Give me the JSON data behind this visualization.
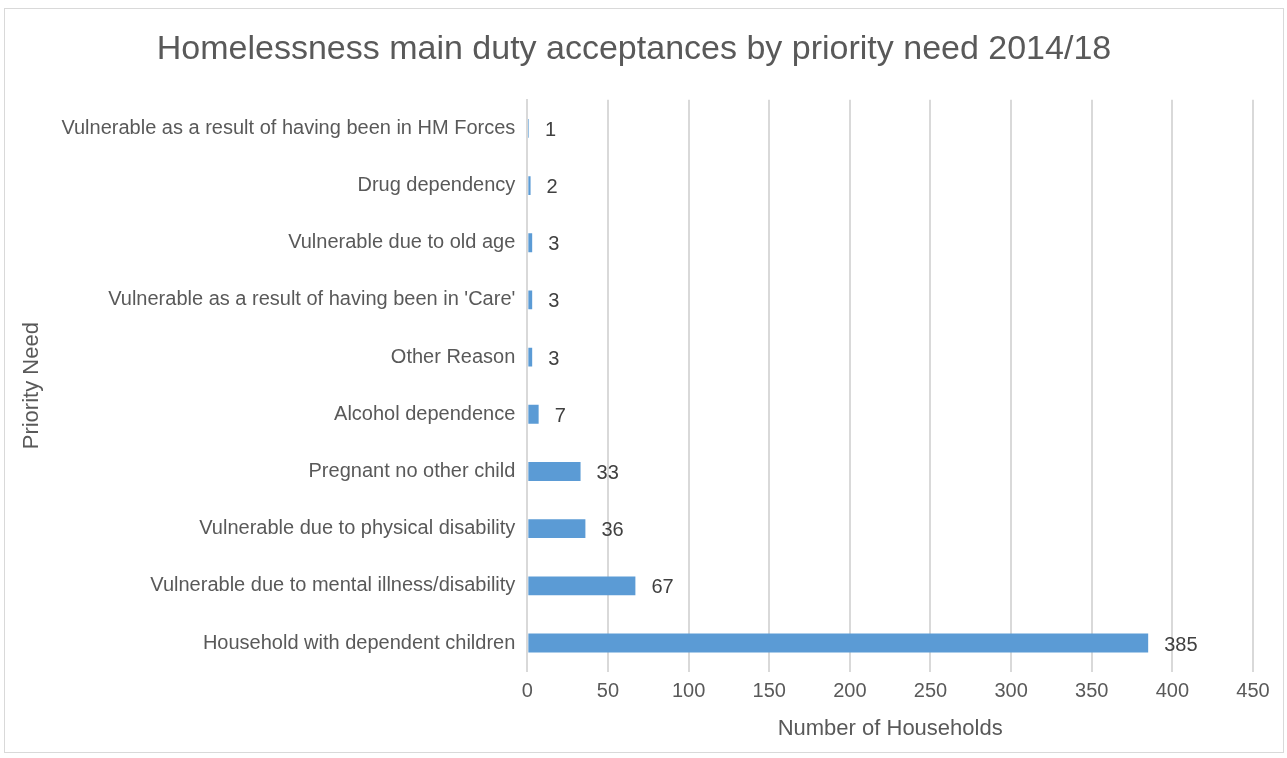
{
  "chart_data": {
    "type": "bar",
    "orientation": "horizontal",
    "title": "Homelessness main duty acceptances by priority need 2014/18",
    "xlabel": "Number of Households",
    "ylabel": "Priority Need",
    "categories": [
      "Vulnerable as a result of having been in HM Forces",
      "Drug dependency",
      "Vulnerable due to old age",
      "Vulnerable as a result of having been in 'Care'",
      "Other Reason",
      "Alcohol dependence",
      "Pregnant no other child",
      "Vulnerable due to physical disability",
      "Vulnerable due to mental illness/disability",
      "Household with dependent children"
    ],
    "values": [
      1,
      2,
      3,
      3,
      3,
      7,
      33,
      36,
      67,
      385
    ],
    "color": "#5b9bd5",
    "xlim": [
      0,
      450
    ],
    "xticks": [
      0,
      50,
      100,
      150,
      200,
      250,
      300,
      350,
      400,
      450
    ],
    "grid": "x",
    "data_labels": true,
    "legend": false
  }
}
